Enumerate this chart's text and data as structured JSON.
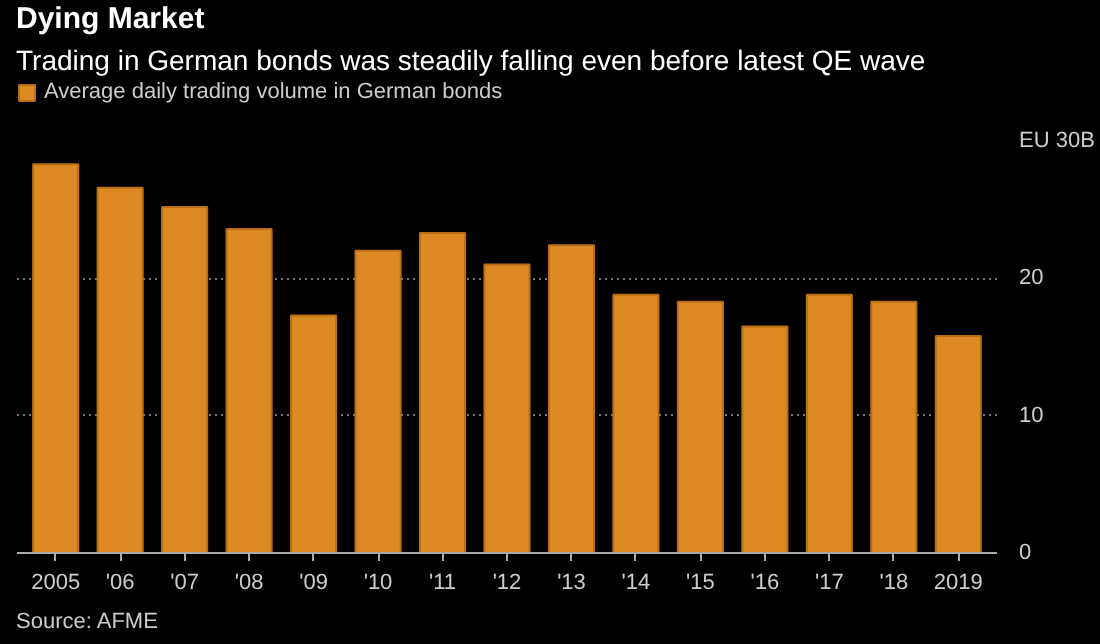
{
  "chart_data": {
    "type": "bar",
    "title": "Dying Market",
    "subtitle": "Trading in German bonds was steadily falling even before latest QE wave",
    "categories": [
      "2005",
      "'06",
      "'07",
      "'08",
      "'09",
      "'10",
      "'11",
      "'12",
      "'13",
      "'14",
      "'15",
      "'16",
      "'17",
      "'18",
      "2019"
    ],
    "series": [
      {
        "name": "Average daily trading volume in German bonds",
        "color": "#dd8a25",
        "values": [
          28.3,
          26.6,
          25.2,
          23.6,
          17.3,
          22.0,
          23.3,
          21.0,
          22.4,
          18.8,
          18.3,
          16.5,
          18.8,
          18.3,
          15.8
        ]
      }
    ],
    "ylim": [
      0,
      30
    ],
    "yticks": [
      0,
      10,
      20,
      {
        "value": 30,
        "label": "EU 30B"
      }
    ],
    "grid": "y",
    "legend": "top left",
    "annotations": [
      "Source: AFME"
    ]
  }
}
